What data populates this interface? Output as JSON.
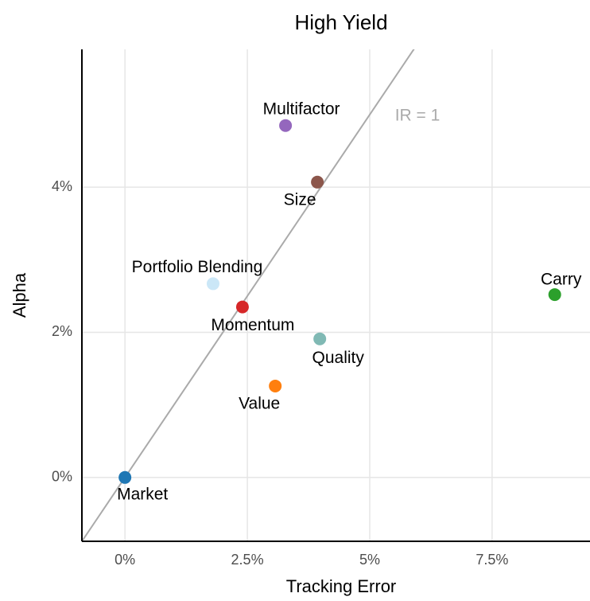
{
  "chart_data": {
    "type": "scatter",
    "title": "High Yield",
    "x_label": "Tracking Error",
    "y_label": "Alpha",
    "xlim": [
      -0.88,
      9.5
    ],
    "ylim": [
      -0.88,
      5.9
    ],
    "xticks": [
      {
        "value": 0,
        "label": "0%"
      },
      {
        "value": 2.5,
        "label": "2.5%"
      },
      {
        "value": 5,
        "label": "5%"
      },
      {
        "value": 7.5,
        "label": "7.5%"
      }
    ],
    "yticks": [
      {
        "value": 0,
        "label": "0%"
      },
      {
        "value": 2,
        "label": "2%"
      },
      {
        "value": 4,
        "label": "4%"
      }
    ],
    "grid": true,
    "reference_line": {
      "slope": 1,
      "label": "IR = 1",
      "color": "#aaaaaa"
    },
    "series": [
      {
        "name": "Market",
        "color": "#1f77b4",
        "x": [
          0
        ],
        "values": [
          0
        ]
      },
      {
        "name": "Multifactor",
        "color": "#9467bd",
        "x": [
          3.28
        ],
        "values": [
          4.85
        ]
      },
      {
        "name": "Size",
        "color": "#8c564b",
        "x": [
          3.93
        ],
        "values": [
          4.07
        ]
      },
      {
        "name": "Portfolio Blending",
        "color": "#cbe7f7",
        "x": [
          1.8
        ],
        "values": [
          2.67
        ]
      },
      {
        "name": "Momentum",
        "color": "#d62728",
        "x": [
          2.4
        ],
        "values": [
          2.35
        ]
      },
      {
        "name": "Carry",
        "color": "#2ca02c",
        "x": [
          8.78
        ],
        "values": [
          2.52
        ]
      },
      {
        "name": "Quality",
        "color": "#80b9b4",
        "x": [
          3.98
        ],
        "values": [
          1.91
        ]
      },
      {
        "name": "Value",
        "color": "#ff7f0e",
        "x": [
          3.07
        ],
        "values": [
          1.26
        ]
      }
    ]
  }
}
